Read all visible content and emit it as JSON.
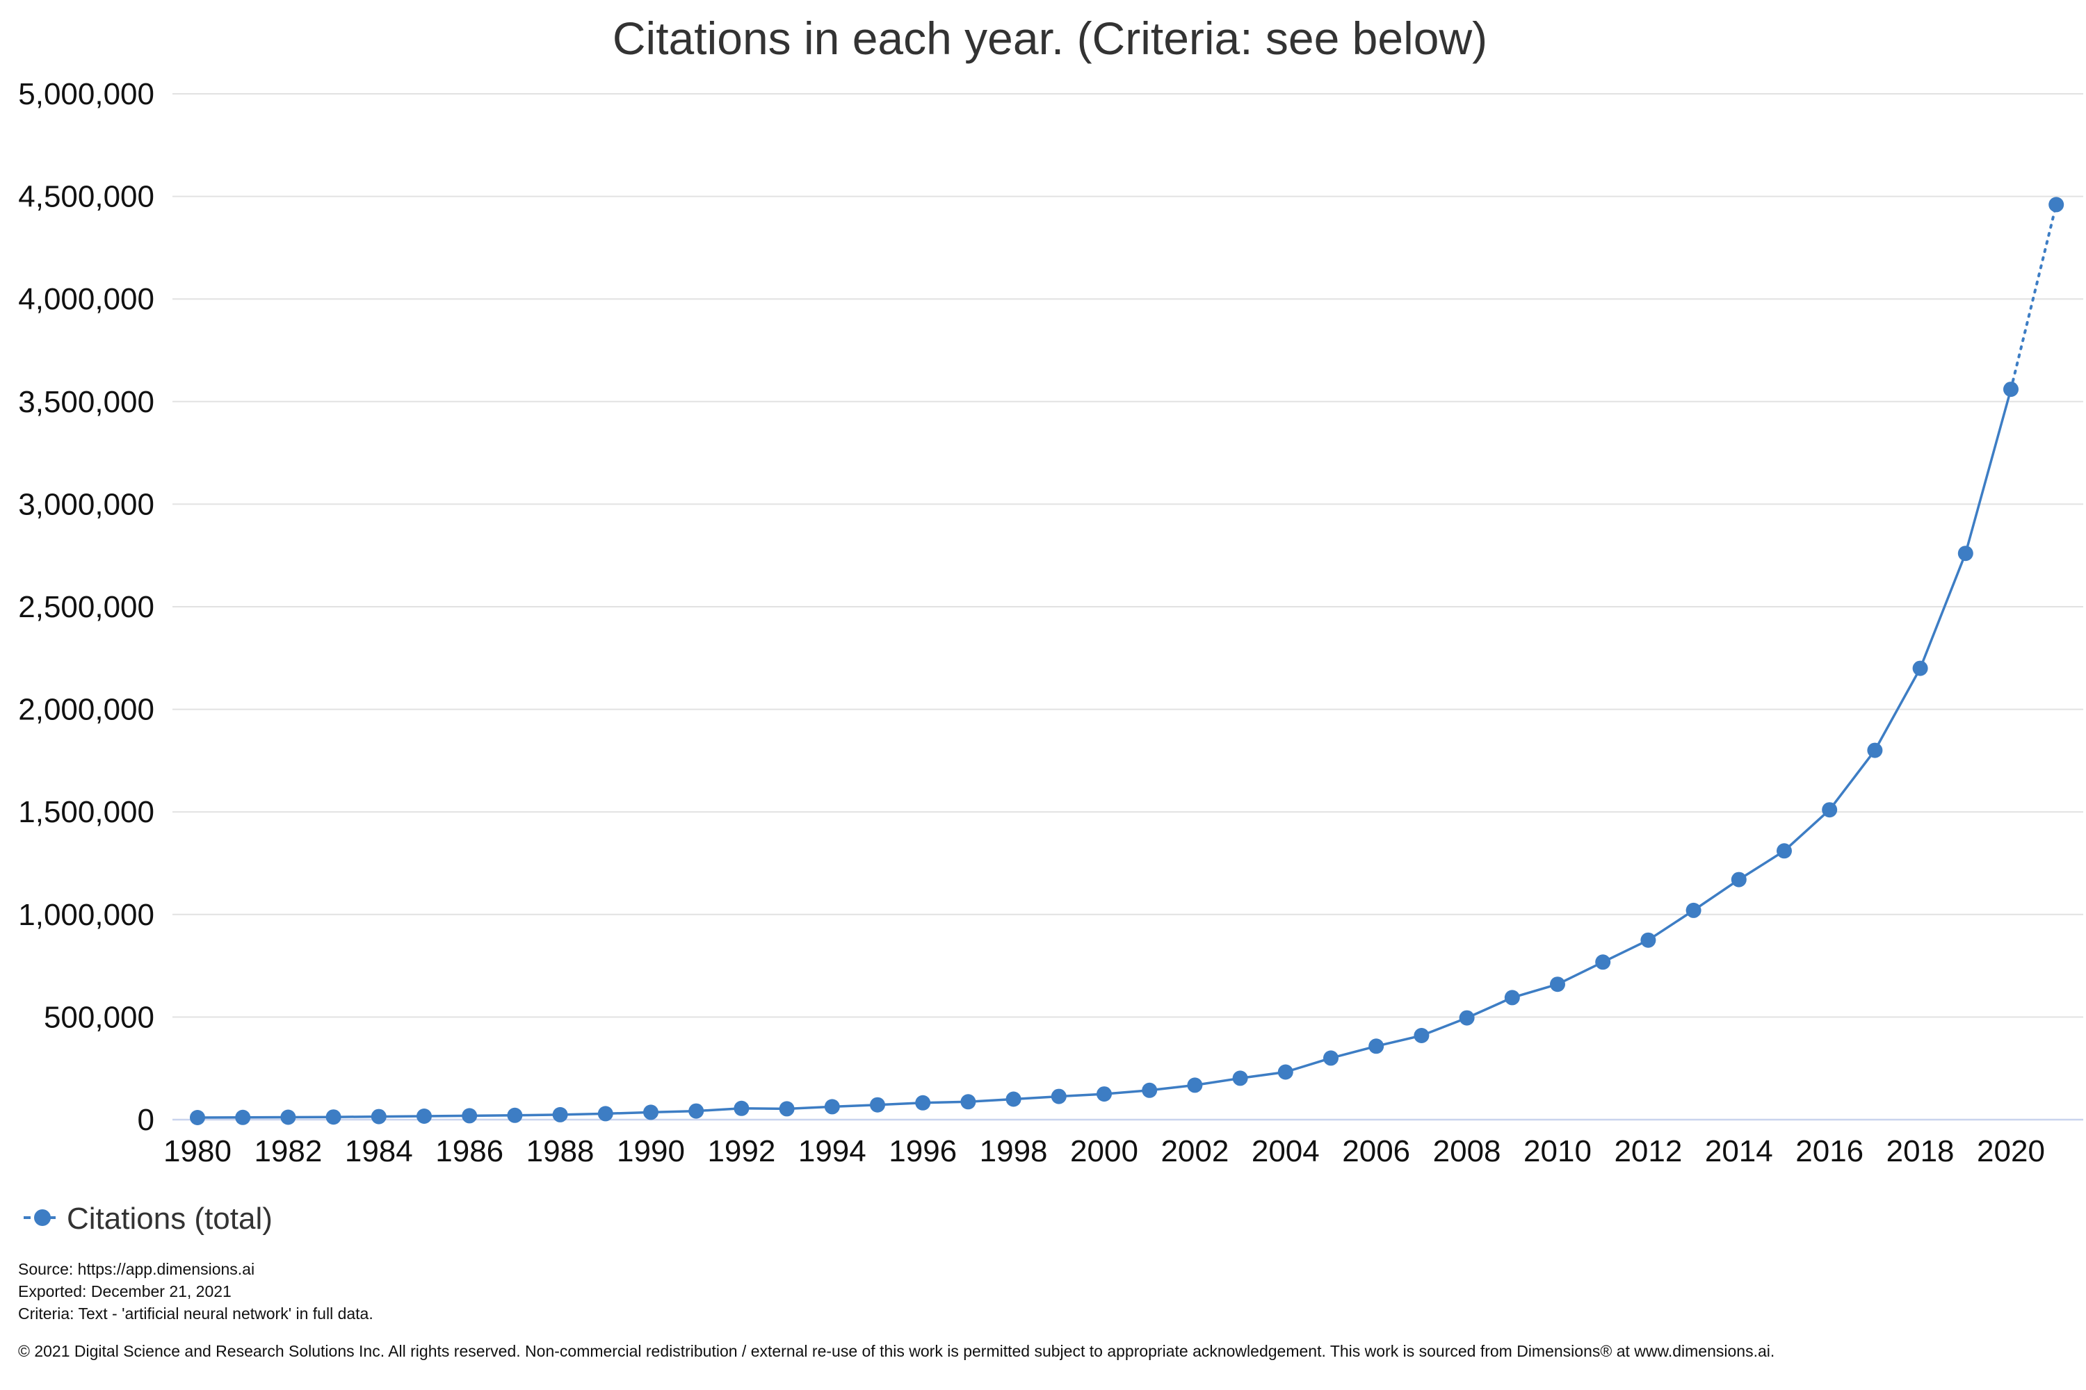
{
  "chart_data": {
    "type": "line",
    "title": "Citations in each year. (Criteria: see below)",
    "xlabel": "",
    "ylabel": "",
    "ylim": [
      0,
      5000000
    ],
    "yticks": [
      0,
      500000,
      1000000,
      1500000,
      2000000,
      2500000,
      3000000,
      3500000,
      4000000,
      4500000,
      5000000
    ],
    "ytick_labels": [
      "0",
      "500,000",
      "1,000,000",
      "1,500,000",
      "2,000,000",
      "2,500,000",
      "3,000,000",
      "3,500,000",
      "4,000,000",
      "4,500,000",
      "5,000,000"
    ],
    "xtick_labels": [
      "1980",
      "1982",
      "1984",
      "1986",
      "1988",
      "1990",
      "1992",
      "1994",
      "1996",
      "1998",
      "2000",
      "2002",
      "2004",
      "2006",
      "2008",
      "2010",
      "2012",
      "2014",
      "2016",
      "2018",
      "2020"
    ],
    "grid": true,
    "legend_position": "bottom-left",
    "series": [
      {
        "name": "Citations (total)",
        "color": "#3d7dc4",
        "x": [
          1980,
          1981,
          1982,
          1983,
          1984,
          1985,
          1986,
          1987,
          1988,
          1989,
          1990,
          1991,
          1992,
          1993,
          1994,
          1995,
          1996,
          1997,
          1998,
          1999,
          2000,
          2001,
          2002,
          2003,
          2004,
          2005,
          2006,
          2007,
          2008,
          2009,
          2010,
          2011,
          2012,
          2013,
          2014,
          2015,
          2016,
          2017,
          2018,
          2019,
          2020,
          2021
        ],
        "values": [
          10000,
          11000,
          12000,
          13000,
          15000,
          17000,
          19000,
          21000,
          24000,
          29000,
          36000,
          42000,
          55000,
          53000,
          63000,
          72000,
          82000,
          87000,
          100000,
          113000,
          125000,
          143000,
          168000,
          202000,
          232000,
          300000,
          358000,
          410000,
          496000,
          595000,
          660000,
          768000,
          875000,
          1020000,
          1170000,
          1310000,
          1510000,
          1800000,
          2200000,
          2760000,
          3560000,
          4460000
        ],
        "dotted_from_index": 40
      }
    ]
  },
  "footer": {
    "source": "Source: https://app.dimensions.ai",
    "exported": "Exported: December 21, 2021",
    "criteria": "Criteria: Text - 'artificial neural network' in full data.",
    "copyright": "© 2021 Digital Science and Research Solutions Inc. All rights reserved. Non-commercial redistribution / external re-use of this work is permitted subject to appropriate acknowledgement. This work is sourced from Dimensions® at www.dimensions.ai."
  }
}
